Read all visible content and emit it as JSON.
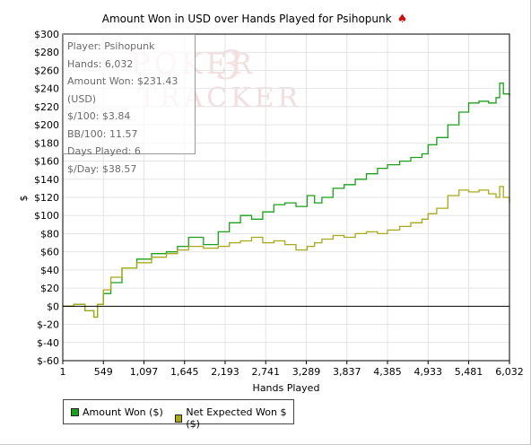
{
  "chart_data": {
    "type": "line",
    "title": "Amount Won in USD over Hands Played for Psihopunk",
    "xlabel": "Hands Played",
    "ylabel": "$",
    "xlim": [
      1,
      6032
    ],
    "ylim": [
      -60,
      300
    ],
    "x_ticks": [
      "1",
      "549",
      "1,097",
      "1,645",
      "2,193",
      "2,741",
      "3,289",
      "3,837",
      "4,385",
      "4,933",
      "5,481",
      "6,032"
    ],
    "y_ticks": [
      "$300",
      "$280",
      "$260",
      "$240",
      "$220",
      "$200",
      "$180",
      "$160",
      "$140",
      "$120",
      "$100",
      "$80",
      "$60",
      "$40",
      "$20",
      "$0",
      "$-20",
      "$-40",
      "$-60"
    ],
    "y_tick_values": [
      300,
      280,
      260,
      240,
      220,
      200,
      180,
      160,
      140,
      120,
      100,
      80,
      60,
      40,
      20,
      0,
      -20,
      -40,
      -60
    ],
    "grid": true,
    "legend_position": "bottom-left",
    "series": [
      {
        "name": "Amount Won ($)",
        "color": "#1aa01a",
        "x": [
          1,
          150,
          300,
          420,
          470,
          549,
          650,
          800,
          1000,
          1200,
          1400,
          1550,
          1700,
          1900,
          2100,
          2250,
          2400,
          2550,
          2700,
          2850,
          3000,
          3150,
          3300,
          3400,
          3500,
          3650,
          3800,
          3950,
          4100,
          4250,
          4385,
          4550,
          4700,
          4850,
          4933,
          5050,
          5200,
          5350,
          5481,
          5620,
          5750,
          5850,
          5900,
          5950,
          6032
        ],
        "y": [
          0,
          2,
          -5,
          -12,
          2,
          14,
          26,
          42,
          52,
          58,
          60,
          66,
          76,
          68,
          82,
          92,
          100,
          96,
          104,
          112,
          114,
          110,
          122,
          114,
          120,
          130,
          134,
          140,
          146,
          152,
          156,
          160,
          164,
          168,
          178,
          186,
          200,
          214,
          224,
          226,
          224,
          230,
          246,
          234,
          231.43
        ]
      },
      {
        "name": "Net Expected Won $ ($)",
        "color": "#a8a818",
        "x": [
          1,
          150,
          300,
          420,
          470,
          549,
          650,
          800,
          1000,
          1200,
          1400,
          1550,
          1700,
          1900,
          2100,
          2250,
          2400,
          2550,
          2700,
          2850,
          3000,
          3150,
          3300,
          3400,
          3500,
          3650,
          3800,
          3950,
          4100,
          4250,
          4385,
          4550,
          4700,
          4850,
          4933,
          5050,
          5200,
          5350,
          5481,
          5620,
          5750,
          5850,
          5900,
          5950,
          6032
        ],
        "y": [
          0,
          2,
          -5,
          -12,
          2,
          18,
          32,
          42,
          48,
          54,
          58,
          62,
          66,
          64,
          66,
          70,
          72,
          76,
          70,
          72,
          68,
          62,
          66,
          70,
          74,
          78,
          76,
          80,
          82,
          80,
          84,
          88,
          92,
          96,
          102,
          108,
          122,
          128,
          126,
          128,
          124,
          120,
          132,
          120,
          114
        ]
      }
    ]
  },
  "stats": {
    "player": "Player: Psihopunk",
    "hands": "Hands: 6,032",
    "amount_won": "Amount Won: $231.43 (USD)",
    "per_100": "$/100: $3.84",
    "bb_per_100": "BB/100: 11.57",
    "days_played": "Days Played: 6",
    "per_day": "$/Day: $38.57"
  },
  "watermark": {
    "line1": "POKER",
    "number": "3",
    "line2": "TRACKER"
  },
  "icons": {
    "title_icon": "spade-icon"
  }
}
